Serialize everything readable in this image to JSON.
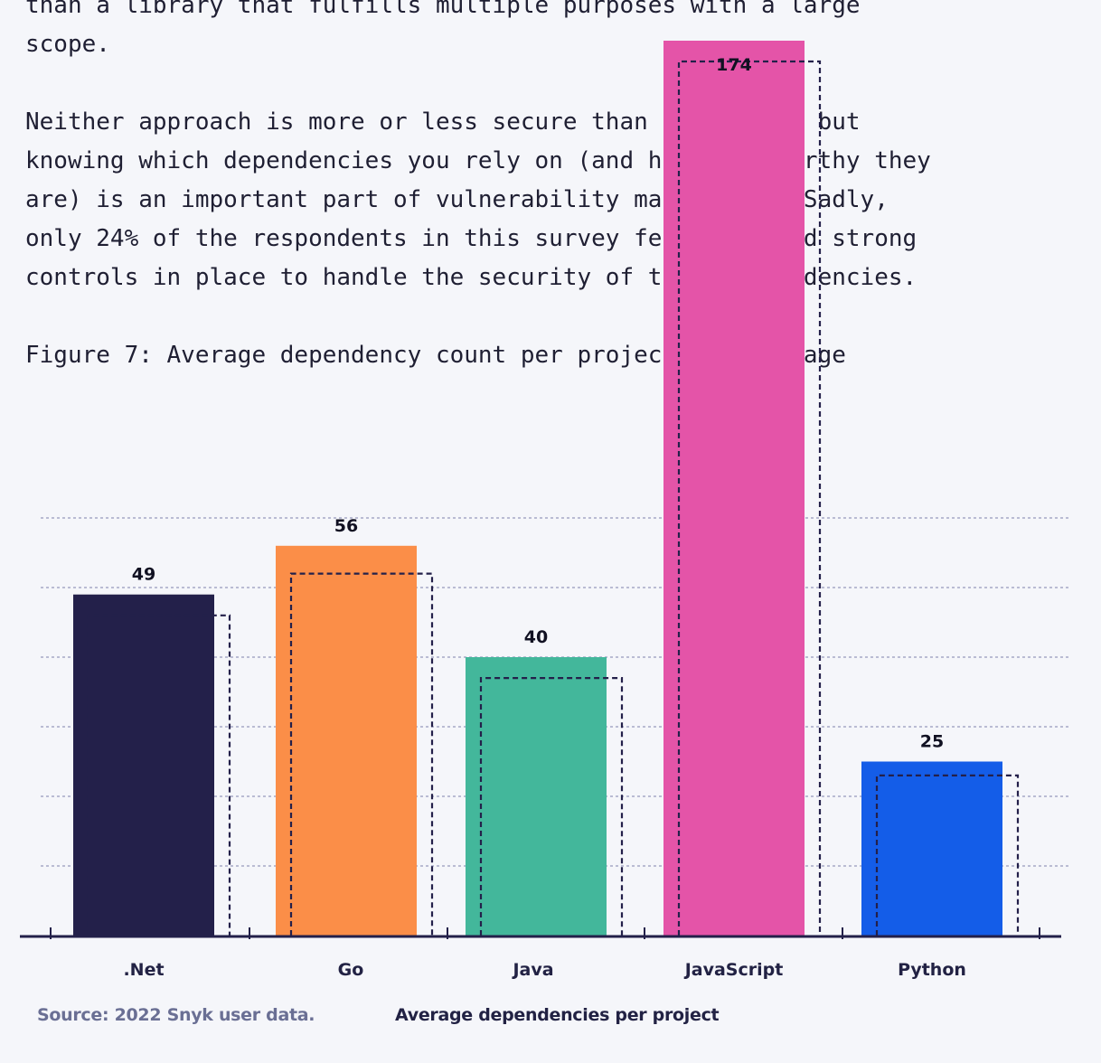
{
  "text_lines": [
    "than a library that fulfills multiple purposes with a large",
    "scope.",
    "Neither approach is more or less secure than the other, but",
    "knowing which dependencies you rely on (and how trustworthy they",
    "are) is an important part of vulnerability management. Sadly,",
    "only 24% of the respondents in this survey felt they had strong",
    "controls in place to handle the security of their dependencies."
  ],
  "figure_caption": "Figure 7: Average dependency count per project by language",
  "source": "Source: 2022 Snyk user data.",
  "chart_data": {
    "type": "bar",
    "title": "",
    "xlabel": "Average dependencies per project",
    "ylabel": "",
    "categories": [
      ".Net",
      "Go",
      "Java",
      "JavaScript",
      "Python"
    ],
    "values": [
      49,
      56,
      40,
      174,
      25
    ],
    "value_labels": [
      "49",
      "56",
      "40",
      "174",
      "25"
    ],
    "comparison_outline_values": [
      46,
      52,
      37,
      171,
      23
    ],
    "colors": [
      "#23204a",
      "#fb8e48",
      "#43b79b",
      "#e454a8",
      "#145de8"
    ],
    "outline_color": "#23204a",
    "grid": true,
    "grid_color": "#a7a9c6",
    "ylim": [
      0,
      60
    ]
  }
}
